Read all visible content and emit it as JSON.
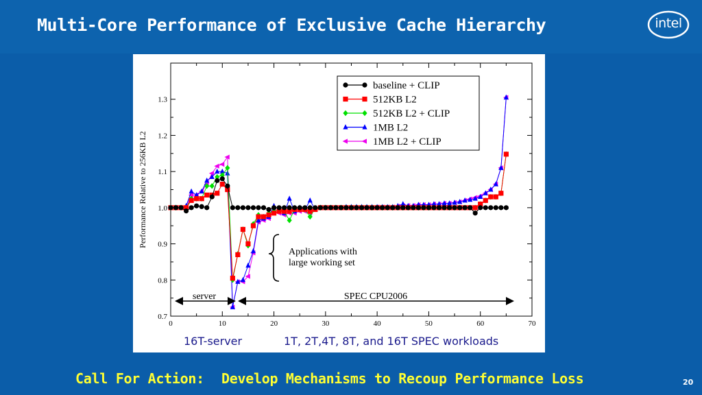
{
  "slide": {
    "title": "Multi-Core Performance of Exclusive Cache Hierarchy",
    "logo_text": "intel",
    "caption_left": "16T-server",
    "caption_right": "1T, 2T,4T, 8T, and 16T SPEC workloads",
    "cta_label": "Call For Action:",
    "cta_text": "Develop Mechanisms to Recoup Performance Loss",
    "page_number": "20"
  },
  "chart_data": {
    "type": "line",
    "title": "",
    "xlabel": "",
    "ylabel": "Performance Relative to 256KB L2",
    "xlim": [
      0,
      70
    ],
    "ylim": [
      0.7,
      1.4
    ],
    "xticks": [
      0,
      10,
      20,
      30,
      40,
      50,
      60,
      70
    ],
    "yticks": [
      0.7,
      0.8,
      0.9,
      1.0,
      1.1,
      1.2,
      1.3
    ],
    "legend_position": "top-right",
    "annotations": {
      "brace_text_1": "Applications with",
      "brace_text_2": "large working set",
      "server_label": "server",
      "spec_label": "SPEC CPU2006"
    },
    "series": [
      {
        "name": "baseline + CLIP",
        "color": "#000000",
        "marker": "circle",
        "x": [
          0,
          1,
          2,
          3,
          4,
          5,
          6,
          7,
          8,
          9,
          10,
          11,
          12,
          13,
          14,
          15,
          16,
          17,
          18,
          19,
          20,
          21,
          22,
          23,
          24,
          25,
          26,
          27,
          28,
          29,
          30,
          31,
          32,
          33,
          34,
          35,
          36,
          37,
          38,
          39,
          40,
          41,
          42,
          43,
          44,
          45,
          46,
          47,
          48,
          49,
          50,
          51,
          52,
          53,
          54,
          55,
          56,
          57,
          58,
          59,
          60,
          61,
          62,
          63,
          64,
          65
        ],
        "values": [
          1.0,
          1.0,
          1.0,
          0.991,
          1.0,
          1.005,
          1.003,
          1.0,
          1.03,
          1.075,
          1.08,
          1.06,
          1.0,
          1.0,
          1.0,
          1.0,
          1.0,
          1.0,
          1.0,
          0.995,
          1.0,
          1.0,
          1.0,
          1.0,
          1.0,
          1.0,
          1.0,
          1.0,
          1.0,
          1.0,
          1.0,
          1.0,
          1.0,
          1.0,
          1.0,
          1.0,
          1.0,
          1.0,
          1.0,
          1.0,
          1.0,
          1.0,
          1.0,
          1.0,
          1.0,
          1.0,
          1.0,
          1.0,
          1.0,
          1.0,
          1.0,
          1.0,
          1.0,
          1.0,
          1.0,
          1.0,
          1.0,
          1.0,
          1.0,
          0.985,
          1.0,
          1.0,
          1.0,
          1.0,
          1.0,
          1.0
        ]
      },
      {
        "name": "512KB L2",
        "color": "#ff0000",
        "marker": "square",
        "x": [
          0,
          1,
          2,
          3,
          4,
          5,
          6,
          7,
          8,
          9,
          10,
          11,
          12,
          13,
          14,
          15,
          16,
          17,
          18,
          19,
          20,
          21,
          22,
          23,
          24,
          25,
          26,
          27,
          28,
          29,
          30,
          31,
          32,
          33,
          34,
          35,
          36,
          37,
          38,
          39,
          40,
          41,
          42,
          43,
          44,
          45,
          46,
          47,
          48,
          49,
          50,
          51,
          52,
          53,
          54,
          55,
          56,
          57,
          58,
          59,
          60,
          61,
          62,
          63,
          64,
          65
        ],
        "values": [
          1.0,
          1.0,
          1.0,
          1.0,
          1.02,
          1.025,
          1.025,
          1.035,
          1.035,
          1.04,
          1.065,
          1.05,
          0.805,
          0.87,
          0.94,
          0.9,
          0.95,
          0.975,
          0.975,
          0.98,
          0.985,
          0.99,
          0.99,
          0.99,
          0.995,
          0.995,
          0.995,
          0.99,
          0.995,
          1.0,
          1.0,
          1.0,
          1.0,
          1.0,
          1.0,
          1.0,
          1.0,
          1.0,
          1.0,
          1.0,
          1.0,
          1.0,
          1.0,
          1.0,
          1.0,
          1.0,
          1.0,
          1.0,
          1.0,
          1.0,
          1.0,
          1.0,
          1.0,
          1.0,
          1.0,
          1.0,
          1.0,
          1.0,
          1.0,
          1.0,
          1.01,
          1.02,
          1.03,
          1.03,
          1.04,
          1.148
        ]
      },
      {
        "name": "512KB L2 + CLIP",
        "color": "#00e000",
        "marker": "diamond",
        "x": [
          0,
          1,
          2,
          3,
          4,
          5,
          6,
          7,
          8,
          9,
          10,
          11,
          12,
          13,
          14,
          15,
          16,
          17,
          18,
          19,
          20,
          21,
          22,
          23,
          24,
          25,
          26,
          27,
          28,
          29,
          30,
          31,
          32,
          33,
          34,
          35,
          36,
          37,
          38,
          39,
          40,
          41,
          42,
          43,
          44,
          45,
          46,
          47,
          48,
          49,
          50,
          51,
          52,
          53,
          54,
          55,
          56,
          57,
          58,
          59,
          60,
          61,
          62,
          63,
          64,
          65
        ],
        "values": [
          1.0,
          1.0,
          1.0,
          1.0,
          1.025,
          1.025,
          1.025,
          1.06,
          1.06,
          1.085,
          1.09,
          1.11,
          0.8,
          0.872,
          0.94,
          0.895,
          0.955,
          0.98,
          0.975,
          0.985,
          0.99,
          0.995,
          0.99,
          0.965,
          0.995,
          0.995,
          0.995,
          0.975,
          0.998,
          1.0,
          1.0,
          1.0,
          1.0,
          1.0,
          1.0,
          1.0,
          1.0,
          1.0,
          1.0,
          1.0,
          1.0,
          1.0,
          1.0,
          1.0,
          1.0,
          1.0,
          1.0,
          1.0,
          1.0,
          1.0,
          1.0,
          1.0,
          1.0,
          1.0,
          1.0,
          1.0,
          1.0,
          1.0,
          1.0,
          1.0,
          1.01,
          1.02,
          1.03,
          1.03,
          1.04,
          1.148
        ]
      },
      {
        "name": "1MB L2",
        "color": "#0000ff",
        "marker": "triangle-up",
        "x": [
          0,
          1,
          2,
          3,
          4,
          5,
          6,
          7,
          8,
          9,
          10,
          11,
          12,
          13,
          14,
          15,
          16,
          17,
          18,
          19,
          20,
          21,
          22,
          23,
          24,
          25,
          26,
          27,
          28,
          29,
          30,
          31,
          32,
          33,
          34,
          35,
          36,
          37,
          38,
          39,
          40,
          41,
          42,
          43,
          44,
          45,
          46,
          47,
          48,
          49,
          50,
          51,
          52,
          53,
          54,
          55,
          56,
          57,
          58,
          59,
          60,
          61,
          62,
          63,
          64,
          65
        ],
        "values": [
          1.0,
          1.0,
          1.0,
          1.005,
          1.045,
          1.035,
          1.045,
          1.075,
          1.085,
          1.1,
          1.1,
          1.095,
          0.725,
          0.795,
          0.8,
          0.84,
          0.88,
          0.965,
          0.97,
          0.975,
          1.005,
          0.995,
          0.985,
          1.025,
          0.99,
          1.0,
          0.995,
          1.02,
          0.995,
          1.0,
          1.0,
          1.0,
          1.0,
          1.0,
          1.002,
          1.002,
          1.002,
          1.002,
          1.002,
          1.002,
          1.002,
          1.002,
          1.002,
          1.002,
          1.005,
          1.01,
          1.005,
          1.005,
          1.008,
          1.008,
          1.008,
          1.01,
          1.01,
          1.012,
          1.012,
          1.014,
          1.016,
          1.02,
          1.022,
          1.025,
          1.03,
          1.04,
          1.05,
          1.065,
          1.11,
          1.305
        ]
      },
      {
        "name": "1MB L2 + CLIP",
        "color": "#ee00ee",
        "marker": "triangle-left",
        "x": [
          0,
          1,
          2,
          3,
          4,
          5,
          6,
          7,
          8,
          9,
          10,
          11,
          12,
          13,
          14,
          15,
          16,
          17,
          18,
          19,
          20,
          21,
          22,
          23,
          24,
          25,
          26,
          27,
          28,
          29,
          30,
          31,
          32,
          33,
          34,
          35,
          36,
          37,
          38,
          39,
          40,
          41,
          42,
          43,
          44,
          45,
          46,
          47,
          48,
          49,
          50,
          51,
          52,
          53,
          54,
          55,
          56,
          57,
          58,
          59,
          60,
          61,
          62,
          63,
          64,
          65
        ],
        "values": [
          1.0,
          1.0,
          1.0,
          1.0,
          1.035,
          1.035,
          1.045,
          1.065,
          1.095,
          1.115,
          1.12,
          1.14,
          0.725,
          0.795,
          0.795,
          0.81,
          0.875,
          0.96,
          0.965,
          0.97,
          0.99,
          0.985,
          0.98,
          0.985,
          0.985,
          0.99,
          0.99,
          0.985,
          0.995,
          1.0,
          1.0,
          1.0,
          1.0,
          1.0,
          1.0,
          1.0,
          1.0,
          1.0,
          1.0,
          1.0,
          1.002,
          1.002,
          1.002,
          1.002,
          1.004,
          1.006,
          1.006,
          1.006,
          1.008,
          1.008,
          1.008,
          1.01,
          1.01,
          1.012,
          1.012,
          1.014,
          1.016,
          1.02,
          1.024,
          1.028,
          1.032,
          1.04,
          1.05,
          1.065,
          1.11,
          1.305
        ]
      }
    ]
  }
}
